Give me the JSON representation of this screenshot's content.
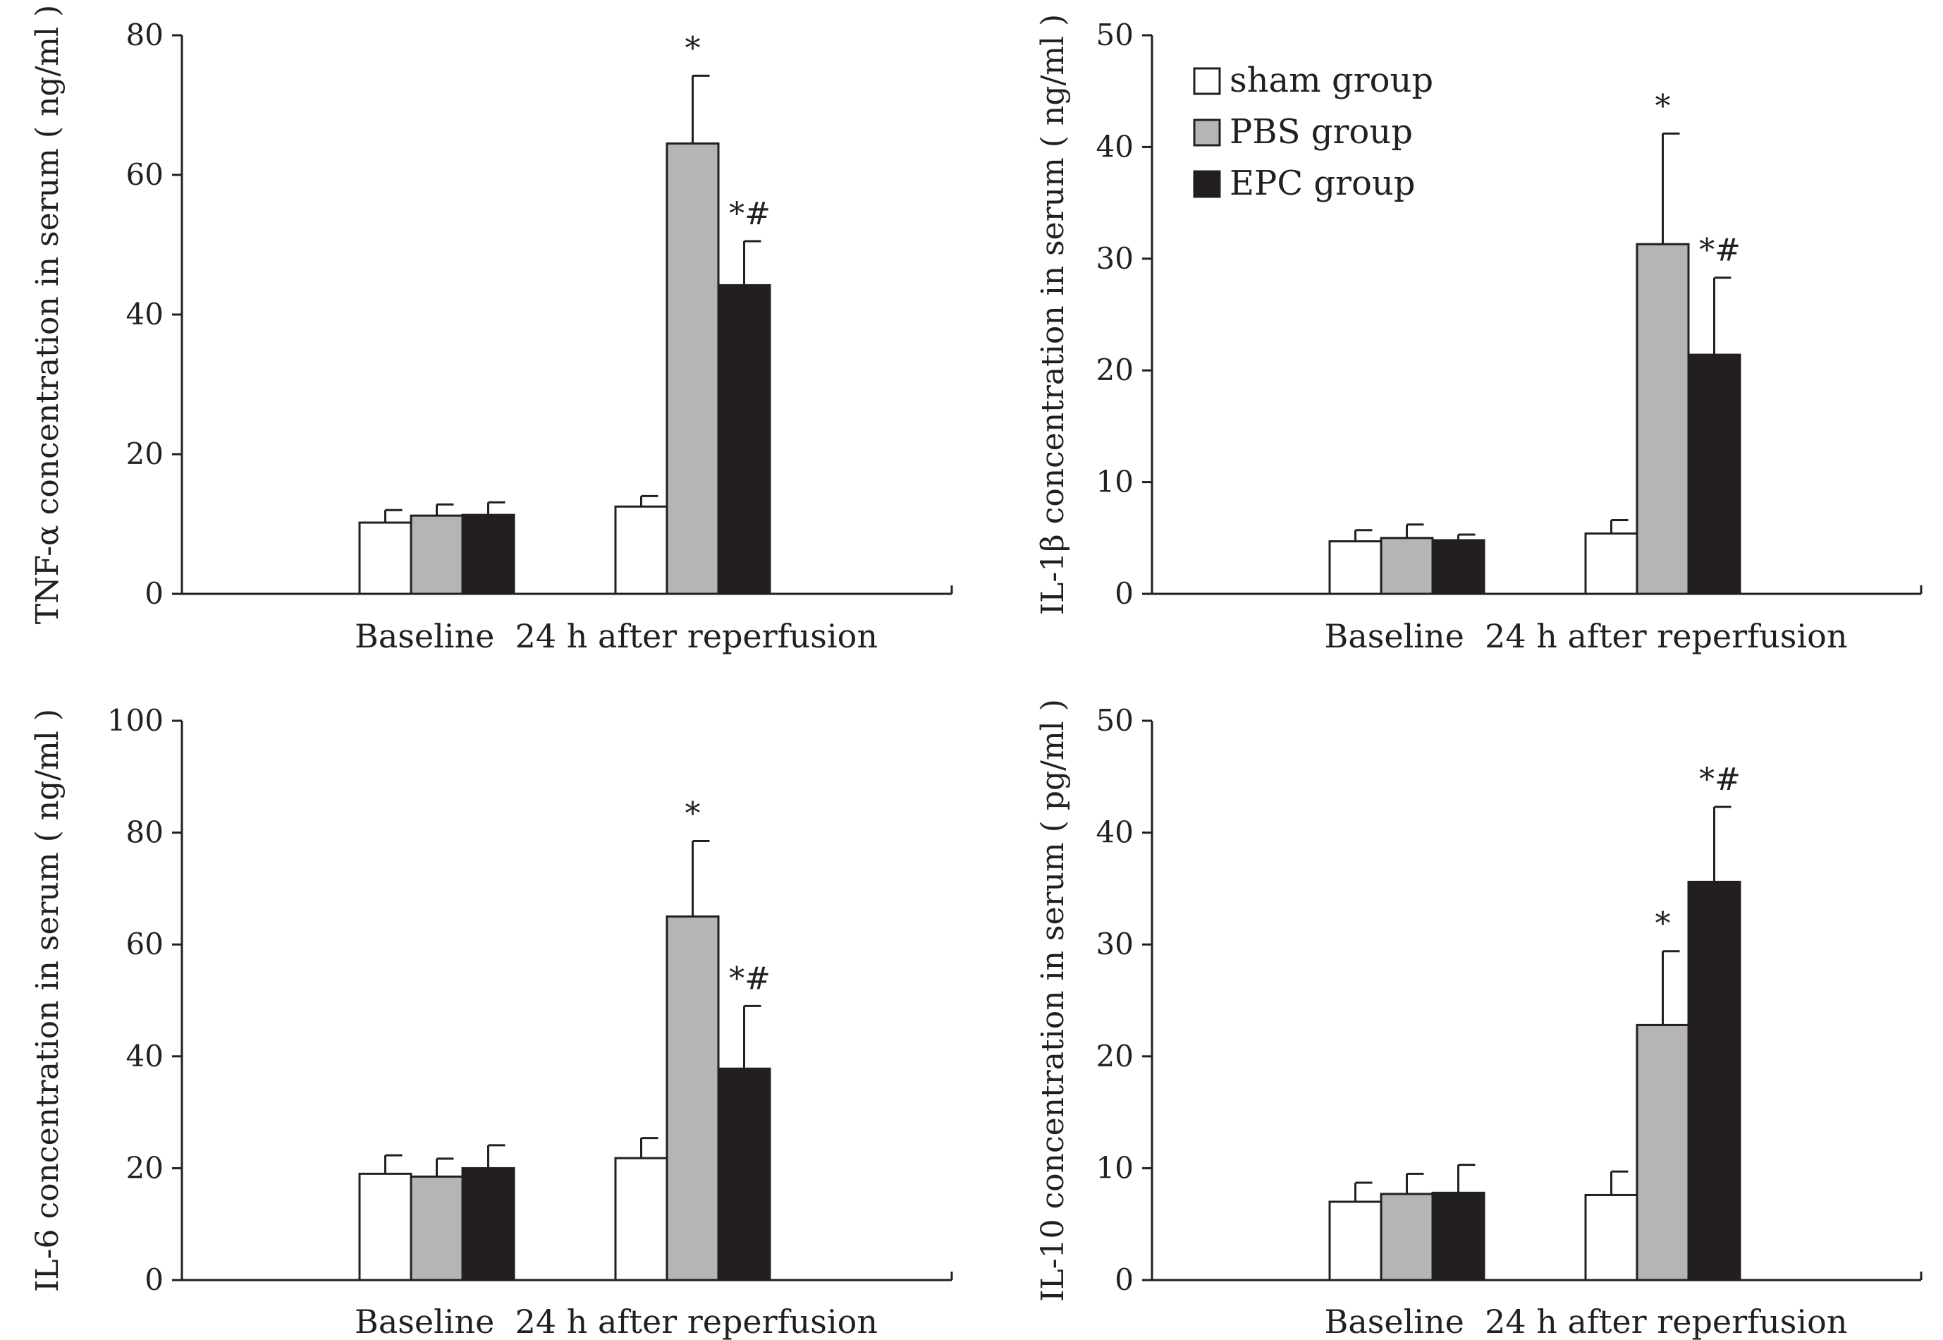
{
  "legend": {
    "items": [
      {
        "label": "sham group",
        "color": "#ffffff"
      },
      {
        "label": "PBS group",
        "color": "#b5b5b5"
      },
      {
        "label": "EPC group",
        "color": "#231f20"
      }
    ]
  },
  "chart_data": [
    {
      "type": "bar",
      "ylabel": "TNF-α concentration in serum ( ng/ml )",
      "categories_label": "Baseline  24 h after reperfusion",
      "ylim": [
        0,
        80
      ],
      "yticks": [
        0,
        20,
        40,
        60,
        80
      ],
      "groups": [
        "Baseline",
        "24 h after reperfusion"
      ],
      "series": [
        {
          "name": "sham group",
          "values": [
            10.2,
            12.5
          ],
          "errors": [
            1.8,
            1.5
          ],
          "annotations": [
            "",
            ""
          ]
        },
        {
          "name": "PBS group",
          "values": [
            11.2,
            64.5
          ],
          "errors": [
            1.6,
            9.7
          ],
          "annotations": [
            "",
            "*"
          ]
        },
        {
          "name": "EPC group",
          "values": [
            11.3,
            44.2
          ],
          "errors": [
            1.8,
            6.3
          ],
          "annotations": [
            "",
            "*#"
          ]
        }
      ]
    },
    {
      "type": "bar",
      "ylabel": "IL-1β concentration in serum ( ng/ml )",
      "categories_label": "Baseline  24 h after reperfusion",
      "ylim": [
        0,
        50
      ],
      "yticks": [
        0,
        10,
        20,
        30,
        40,
        50
      ],
      "groups": [
        "Baseline",
        "24 h after reperfusion"
      ],
      "series": [
        {
          "name": "sham group",
          "values": [
            4.7,
            5.4
          ],
          "errors": [
            1.0,
            1.2
          ],
          "annotations": [
            "",
            ""
          ]
        },
        {
          "name": "PBS group",
          "values": [
            5.0,
            31.3
          ],
          "errors": [
            1.2,
            9.9
          ],
          "annotations": [
            "",
            "*"
          ]
        },
        {
          "name": "EPC group",
          "values": [
            4.8,
            21.4
          ],
          "errors": [
            0.5,
            6.9
          ],
          "annotations": [
            "",
            "*#"
          ]
        }
      ]
    },
    {
      "type": "bar",
      "ylabel": "IL-6 concentration in serum ( ng/ml )",
      "categories_label": "Baseline  24 h after reperfusion",
      "ylim": [
        0,
        100
      ],
      "yticks": [
        0,
        20,
        40,
        60,
        80,
        100
      ],
      "groups": [
        "Baseline",
        "24 h after reperfusion"
      ],
      "series": [
        {
          "name": "sham group",
          "values": [
            19.0,
            21.8
          ],
          "errors": [
            3.3,
            3.6
          ],
          "annotations": [
            "",
            ""
          ]
        },
        {
          "name": "PBS group",
          "values": [
            18.5,
            65.0
          ],
          "errors": [
            3.2,
            13.5
          ],
          "annotations": [
            "",
            "*"
          ]
        },
        {
          "name": "EPC group",
          "values": [
            20.0,
            37.8
          ],
          "errors": [
            4.1,
            11.2
          ],
          "annotations": [
            "",
            "*#"
          ]
        }
      ]
    },
    {
      "type": "bar",
      "ylabel": "IL-10 concentration in serum ( pg/ml )",
      "categories_label": "Baseline  24 h after reperfusion",
      "ylim": [
        0,
        50
      ],
      "yticks": [
        0,
        10,
        20,
        30,
        40,
        50
      ],
      "groups": [
        "Baseline",
        "24 h after reperfusion"
      ],
      "series": [
        {
          "name": "sham group",
          "values": [
            7.0,
            7.6
          ],
          "errors": [
            1.7,
            2.1
          ],
          "annotations": [
            "",
            ""
          ]
        },
        {
          "name": "PBS group",
          "values": [
            7.7,
            22.8
          ],
          "errors": [
            1.8,
            6.6
          ],
          "annotations": [
            "",
            "*"
          ]
        },
        {
          "name": "EPC group",
          "values": [
            7.8,
            35.6
          ],
          "errors": [
            2.5,
            6.7
          ],
          "annotations": [
            "",
            "*#"
          ]
        }
      ]
    }
  ]
}
